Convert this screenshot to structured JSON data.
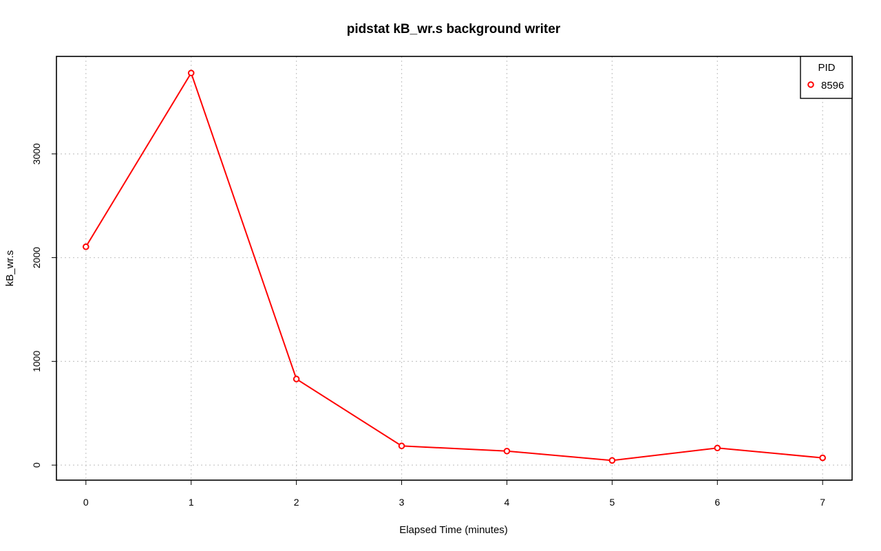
{
  "chart_data": {
    "type": "line",
    "title": "pidstat kB_wr.s background writer",
    "xlabel": "Elapsed Time (minutes)",
    "ylabel": "kB_wr.s",
    "x": [
      0,
      1,
      2,
      3,
      4,
      5,
      6,
      7
    ],
    "xlim": [
      -0.28,
      7.28
    ],
    "ylim": [
      -145,
      3940
    ],
    "x_ticks": [
      "0",
      "1",
      "2",
      "3",
      "4",
      "5",
      "6",
      "7"
    ],
    "y_ticks": [
      "0",
      "1000",
      "2000",
      "3000"
    ],
    "x_tick_values": [
      0,
      1,
      2,
      3,
      4,
      5,
      6,
      7
    ],
    "y_tick_values": [
      0,
      1000,
      2000,
      3000
    ],
    "grid": true,
    "legend": {
      "title": "PID",
      "position": "top-right"
    },
    "series": [
      {
        "name": "8596",
        "color": "#ff0000",
        "values": [
          2105,
          3780,
          830,
          185,
          135,
          45,
          165,
          70
        ]
      }
    ]
  }
}
